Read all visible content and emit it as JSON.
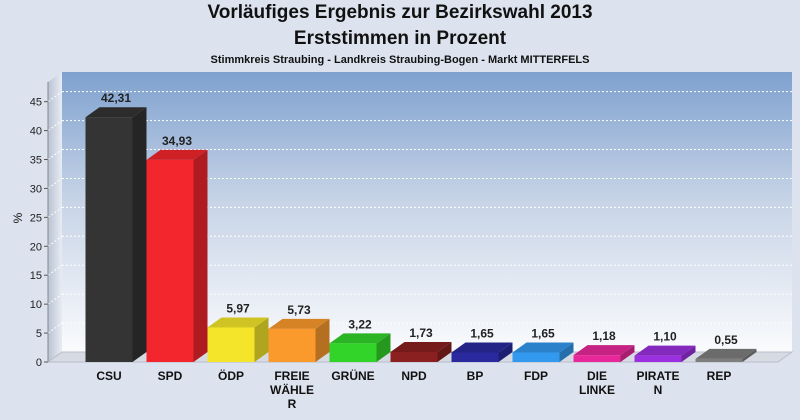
{
  "header": {
    "title_line1": "Vorläufiges Ergebnis zur Bezirkswahl 2013",
    "title_line2": "Erststimmen in Prozent",
    "subtitle": "Stimmkreis Straubing - Landkreis Straubing-Bogen - Markt MITTERFELS"
  },
  "chart_data": {
    "type": "bar",
    "title": "Vorläufiges Ergebnis zur Bezirkswahl 2013 Erststimmen in Prozent",
    "subtitle": "Stimmkreis Straubing - Landkreis Straubing-Bogen - Markt MITTERFELS",
    "ylabel": "%",
    "ylim": [
      0,
      47
    ],
    "yticks": [
      0,
      5,
      10,
      15,
      20,
      25,
      30,
      35,
      40,
      45
    ],
    "grid": true,
    "categories": [
      [
        "CSU"
      ],
      [
        "SPD"
      ],
      [
        "ÖDP"
      ],
      [
        "FREIE",
        "WÄHLE",
        "R"
      ],
      [
        "GRÜNE"
      ],
      [
        "NPD"
      ],
      [
        "BP"
      ],
      [
        "FDP"
      ],
      [
        "DIE",
        "LINKE"
      ],
      [
        "PIRATE",
        "N"
      ],
      [
        "REP"
      ]
    ],
    "values": [
      42.31,
      34.93,
      5.97,
      5.73,
      3.22,
      1.73,
      1.65,
      1.65,
      1.18,
      1.1,
      0.55
    ],
    "value_labels": [
      "42,31",
      "34,93",
      "5,97",
      "5,73",
      "3,22",
      "1,73",
      "1,65",
      "1,65",
      "1,18",
      "1,10",
      "0,55"
    ],
    "colors": [
      "#343434",
      "#f2262c",
      "#f5e52a",
      "#fb9a2c",
      "#33d42a",
      "#8a2020",
      "#2a2a9e",
      "#3399ee",
      "#e8289a",
      "#9a30e0",
      "#7e7e7e"
    ]
  }
}
